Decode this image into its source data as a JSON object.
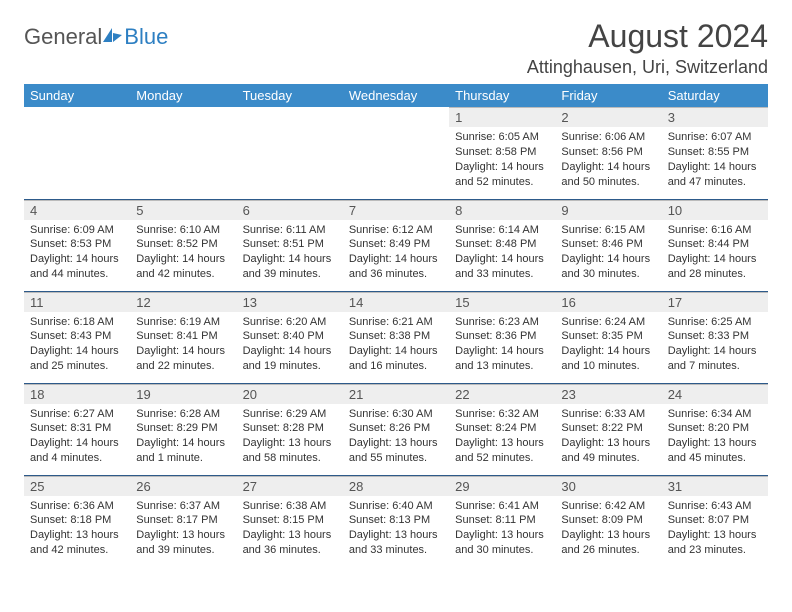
{
  "logo": {
    "text1": "General",
    "text2": "Blue"
  },
  "title": "August 2024",
  "location": "Attinghausen, Uri, Switzerland",
  "colors": {
    "header_bg": "#3b8bc9",
    "header_text": "#ffffff",
    "daynum_bg": "#eeeeee",
    "row_border": "#2d5a8a",
    "logo_blue": "#2d7fc2",
    "text": "#333333"
  },
  "weekdays": [
    "Sunday",
    "Monday",
    "Tuesday",
    "Wednesday",
    "Thursday",
    "Friday",
    "Saturday"
  ],
  "weeks": [
    [
      null,
      null,
      null,
      null,
      {
        "n": "1",
        "sr": "6:05 AM",
        "ss": "8:58 PM",
        "dl": "14 hours and 52 minutes."
      },
      {
        "n": "2",
        "sr": "6:06 AM",
        "ss": "8:56 PM",
        "dl": "14 hours and 50 minutes."
      },
      {
        "n": "3",
        "sr": "6:07 AM",
        "ss": "8:55 PM",
        "dl": "14 hours and 47 minutes."
      }
    ],
    [
      {
        "n": "4",
        "sr": "6:09 AM",
        "ss": "8:53 PM",
        "dl": "14 hours and 44 minutes."
      },
      {
        "n": "5",
        "sr": "6:10 AM",
        "ss": "8:52 PM",
        "dl": "14 hours and 42 minutes."
      },
      {
        "n": "6",
        "sr": "6:11 AM",
        "ss": "8:51 PM",
        "dl": "14 hours and 39 minutes."
      },
      {
        "n": "7",
        "sr": "6:12 AM",
        "ss": "8:49 PM",
        "dl": "14 hours and 36 minutes."
      },
      {
        "n": "8",
        "sr": "6:14 AM",
        "ss": "8:48 PM",
        "dl": "14 hours and 33 minutes."
      },
      {
        "n": "9",
        "sr": "6:15 AM",
        "ss": "8:46 PM",
        "dl": "14 hours and 30 minutes."
      },
      {
        "n": "10",
        "sr": "6:16 AM",
        "ss": "8:44 PM",
        "dl": "14 hours and 28 minutes."
      }
    ],
    [
      {
        "n": "11",
        "sr": "6:18 AM",
        "ss": "8:43 PM",
        "dl": "14 hours and 25 minutes."
      },
      {
        "n": "12",
        "sr": "6:19 AM",
        "ss": "8:41 PM",
        "dl": "14 hours and 22 minutes."
      },
      {
        "n": "13",
        "sr": "6:20 AM",
        "ss": "8:40 PM",
        "dl": "14 hours and 19 minutes."
      },
      {
        "n": "14",
        "sr": "6:21 AM",
        "ss": "8:38 PM",
        "dl": "14 hours and 16 minutes."
      },
      {
        "n": "15",
        "sr": "6:23 AM",
        "ss": "8:36 PM",
        "dl": "14 hours and 13 minutes."
      },
      {
        "n": "16",
        "sr": "6:24 AM",
        "ss": "8:35 PM",
        "dl": "14 hours and 10 minutes."
      },
      {
        "n": "17",
        "sr": "6:25 AM",
        "ss": "8:33 PM",
        "dl": "14 hours and 7 minutes."
      }
    ],
    [
      {
        "n": "18",
        "sr": "6:27 AM",
        "ss": "8:31 PM",
        "dl": "14 hours and 4 minutes."
      },
      {
        "n": "19",
        "sr": "6:28 AM",
        "ss": "8:29 PM",
        "dl": "14 hours and 1 minute."
      },
      {
        "n": "20",
        "sr": "6:29 AM",
        "ss": "8:28 PM",
        "dl": "13 hours and 58 minutes."
      },
      {
        "n": "21",
        "sr": "6:30 AM",
        "ss": "8:26 PM",
        "dl": "13 hours and 55 minutes."
      },
      {
        "n": "22",
        "sr": "6:32 AM",
        "ss": "8:24 PM",
        "dl": "13 hours and 52 minutes."
      },
      {
        "n": "23",
        "sr": "6:33 AM",
        "ss": "8:22 PM",
        "dl": "13 hours and 49 minutes."
      },
      {
        "n": "24",
        "sr": "6:34 AM",
        "ss": "8:20 PM",
        "dl": "13 hours and 45 minutes."
      }
    ],
    [
      {
        "n": "25",
        "sr": "6:36 AM",
        "ss": "8:18 PM",
        "dl": "13 hours and 42 minutes."
      },
      {
        "n": "26",
        "sr": "6:37 AM",
        "ss": "8:17 PM",
        "dl": "13 hours and 39 minutes."
      },
      {
        "n": "27",
        "sr": "6:38 AM",
        "ss": "8:15 PM",
        "dl": "13 hours and 36 minutes."
      },
      {
        "n": "28",
        "sr": "6:40 AM",
        "ss": "8:13 PM",
        "dl": "13 hours and 33 minutes."
      },
      {
        "n": "29",
        "sr": "6:41 AM",
        "ss": "8:11 PM",
        "dl": "13 hours and 30 minutes."
      },
      {
        "n": "30",
        "sr": "6:42 AM",
        "ss": "8:09 PM",
        "dl": "13 hours and 26 minutes."
      },
      {
        "n": "31",
        "sr": "6:43 AM",
        "ss": "8:07 PM",
        "dl": "13 hours and 23 minutes."
      }
    ]
  ],
  "labels": {
    "sunrise": "Sunrise:",
    "sunset": "Sunset:",
    "daylight": "Daylight:"
  }
}
